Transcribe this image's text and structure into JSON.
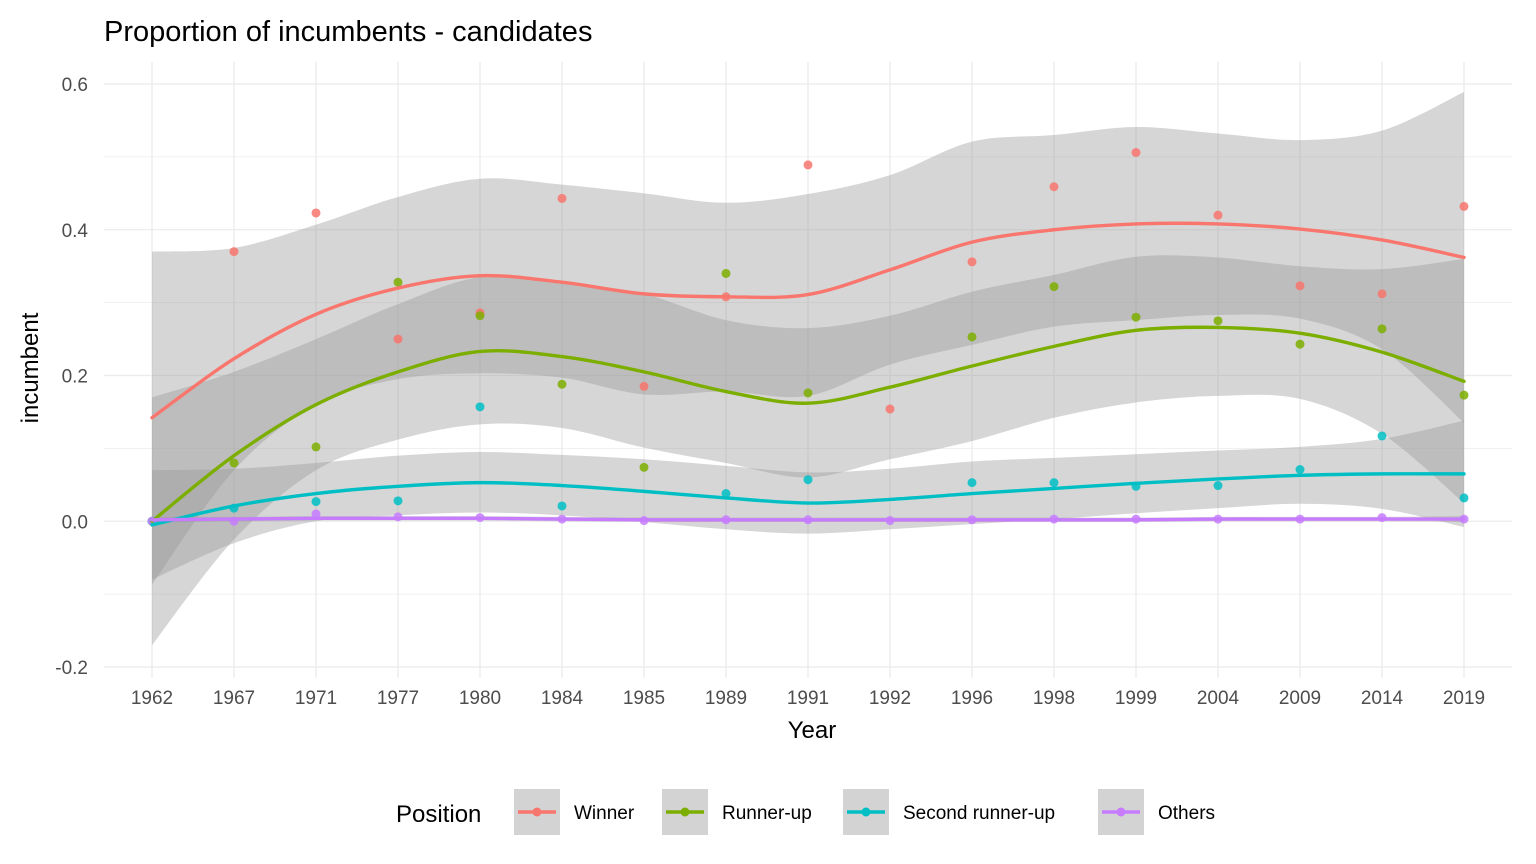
{
  "chart_data": {
    "type": "line",
    "title": "Proportion of incumbents - candidates",
    "xlabel": "Year",
    "ylabel": "incumbent",
    "categories": [
      "1962",
      "1967",
      "1971",
      "1977",
      "1980",
      "1984",
      "1985",
      "1989",
      "1991",
      "1992",
      "1996",
      "1998",
      "1999",
      "2004",
      "2009",
      "2014",
      "2019"
    ],
    "ylim": [
      -0.2,
      0.6
    ],
    "yticks": [
      "-0.2",
      "0.0",
      "0.2",
      "0.4",
      "0.6"
    ],
    "grid": true,
    "legend_position": "bottom",
    "legend_title": "Position",
    "series": [
      {
        "name": "Winner",
        "color": "#F8766D",
        "points": [
          null,
          0.37,
          0.423,
          0.25,
          0.286,
          0.443,
          0.185,
          0.308,
          0.489,
          0.154,
          0.356,
          0.459,
          0.506,
          0.42,
          0.323,
          0.312,
          0.432
        ],
        "smooth": [
          0.142,
          0.223,
          0.284,
          0.32,
          0.337,
          0.328,
          0.312,
          0.308,
          0.311,
          0.345,
          0.383,
          0.4,
          0.408,
          0.408,
          0.401,
          0.386,
          0.362
        ],
        "ci_upper": [
          0.37,
          0.375,
          0.407,
          0.445,
          0.47,
          0.462,
          0.45,
          0.437,
          0.449,
          0.475,
          0.521,
          0.53,
          0.541,
          0.532,
          0.523,
          0.536,
          0.589
        ],
        "ci_lower": [
          -0.087,
          0.07,
          0.16,
          0.195,
          0.203,
          0.197,
          0.174,
          0.178,
          0.172,
          0.215,
          0.242,
          0.267,
          0.276,
          0.283,
          0.278,
          0.236,
          0.135
        ]
      },
      {
        "name": "Runner-up",
        "color": "#7CAE00",
        "points": [
          0.0,
          0.08,
          0.102,
          0.328,
          0.282,
          0.188,
          0.074,
          0.34,
          0.176,
          null,
          0.253,
          0.322,
          0.28,
          0.275,
          0.243,
          0.264,
          0.173
        ],
        "smooth": [
          0.0,
          0.09,
          0.16,
          0.205,
          0.233,
          0.226,
          0.205,
          0.178,
          0.162,
          0.184,
          0.213,
          0.24,
          0.262,
          0.266,
          0.258,
          0.232,
          0.192
        ],
        "ci_upper": [
          0.17,
          0.205,
          0.25,
          0.298,
          0.335,
          0.328,
          0.312,
          0.276,
          0.265,
          0.282,
          0.315,
          0.338,
          0.363,
          0.362,
          0.35,
          0.346,
          0.36
        ],
        "ci_lower": [
          -0.17,
          -0.025,
          0.07,
          0.112,
          0.133,
          0.128,
          0.101,
          0.08,
          0.06,
          0.085,
          0.11,
          0.142,
          0.163,
          0.172,
          0.168,
          0.12,
          0.025
        ]
      },
      {
        "name": "Second runner-up",
        "color": "#00BFC4",
        "points": [
          0.0,
          0.018,
          0.027,
          0.028,
          0.157,
          0.021,
          null,
          0.038,
          0.057,
          null,
          0.053,
          0.053,
          0.048,
          0.049,
          0.071,
          0.117,
          0.032
        ],
        "smooth": [
          -0.005,
          0.021,
          0.038,
          0.048,
          0.053,
          0.049,
          0.041,
          0.032,
          0.025,
          0.03,
          0.038,
          0.045,
          0.052,
          0.058,
          0.063,
          0.065,
          0.065
        ],
        "ci_upper": [
          0.07,
          0.072,
          0.08,
          0.09,
          0.095,
          0.091,
          0.085,
          0.076,
          0.067,
          0.072,
          0.082,
          0.087,
          0.092,
          0.097,
          0.102,
          0.113,
          0.138
        ],
        "ci_lower": [
          -0.08,
          -0.03,
          0.0,
          0.008,
          0.012,
          0.008,
          -0.001,
          -0.011,
          -0.017,
          -0.011,
          -0.004,
          0.003,
          0.011,
          0.018,
          0.024,
          0.017,
          -0.008
        ]
      },
      {
        "name": "Others",
        "color": "#C77CFF",
        "points": [
          0.0,
          0.0,
          0.01,
          0.006,
          0.005,
          0.003,
          0.001,
          0.002,
          0.002,
          0.001,
          0.002,
          0.003,
          0.003,
          0.003,
          0.003,
          0.005,
          0.003
        ],
        "smooth": [
          0.002,
          0.003,
          0.004,
          0.004,
          0.004,
          0.003,
          0.002,
          0.002,
          0.002,
          0.002,
          0.002,
          0.002,
          0.002,
          0.003,
          0.003,
          0.003,
          0.003
        ],
        "ci_upper": [
          0.006,
          0.006,
          0.007,
          0.007,
          0.007,
          0.006,
          0.005,
          0.005,
          0.005,
          0.005,
          0.005,
          0.005,
          0.005,
          0.006,
          0.006,
          0.006,
          0.007
        ],
        "ci_lower": [
          -0.002,
          0.0,
          0.001,
          0.001,
          0.001,
          0.0,
          -0.001,
          -0.001,
          -0.001,
          -0.001,
          -0.001,
          -0.001,
          -0.001,
          0.0,
          0.0,
          0.0,
          -0.001
        ]
      }
    ]
  }
}
